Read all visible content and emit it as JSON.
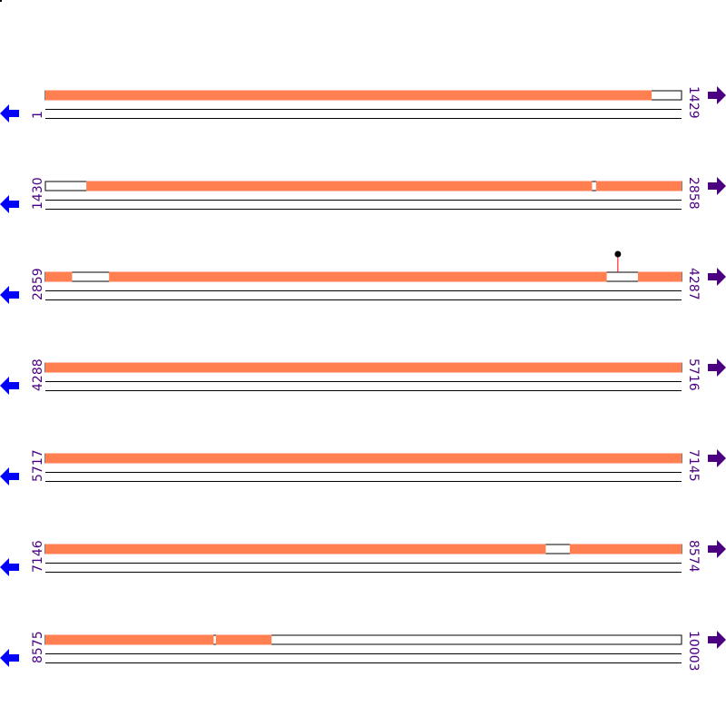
{
  "colors": {
    "feature": "#ff7f50",
    "gap": "#ffffff",
    "line": "#000000",
    "left_arrow": "#0000ff",
    "right_arrow": "#4b0082",
    "label": "#4b0082",
    "marker_stem": "#ff0000",
    "marker_head": "#000000"
  },
  "icons": {
    "left": "arrow-left-icon",
    "right": "arrow-right-icon"
  },
  "bp_per_row": 1429,
  "rows": [
    {
      "start": "1",
      "end": "1429",
      "s": 1,
      "e": 1429,
      "features": [
        [
          1,
          1362
        ]
      ]
    },
    {
      "start": "1430",
      "end": "2858",
      "s": 1430,
      "e": 2858,
      "features": [
        [
          1522,
          2657
        ],
        [
          2667,
          2858
        ]
      ]
    },
    {
      "start": "2859",
      "end": "4287",
      "s": 2859,
      "e": 4287,
      "features": [
        [
          2859,
          2918
        ],
        [
          3002,
          4119
        ],
        [
          4190,
          4287
        ]
      ],
      "markers": [
        4145
      ]
    },
    {
      "start": "4288",
      "end": "5716",
      "s": 4288,
      "e": 5716,
      "features": [
        [
          4288,
          5716
        ]
      ]
    },
    {
      "start": "5717",
      "end": "7145",
      "s": 5717,
      "e": 7145,
      "features": [
        [
          5717,
          7145
        ]
      ]
    },
    {
      "start": "7146",
      "end": "8574",
      "s": 7146,
      "e": 8574,
      "features": [
        [
          7146,
          8269
        ],
        [
          8324,
          8574
        ]
      ]
    },
    {
      "start": "8575",
      "end": "10003",
      "s": 8575,
      "e": 10003,
      "features": [
        [
          8575,
          8952
        ],
        [
          8958,
          9082
        ]
      ]
    }
  ]
}
